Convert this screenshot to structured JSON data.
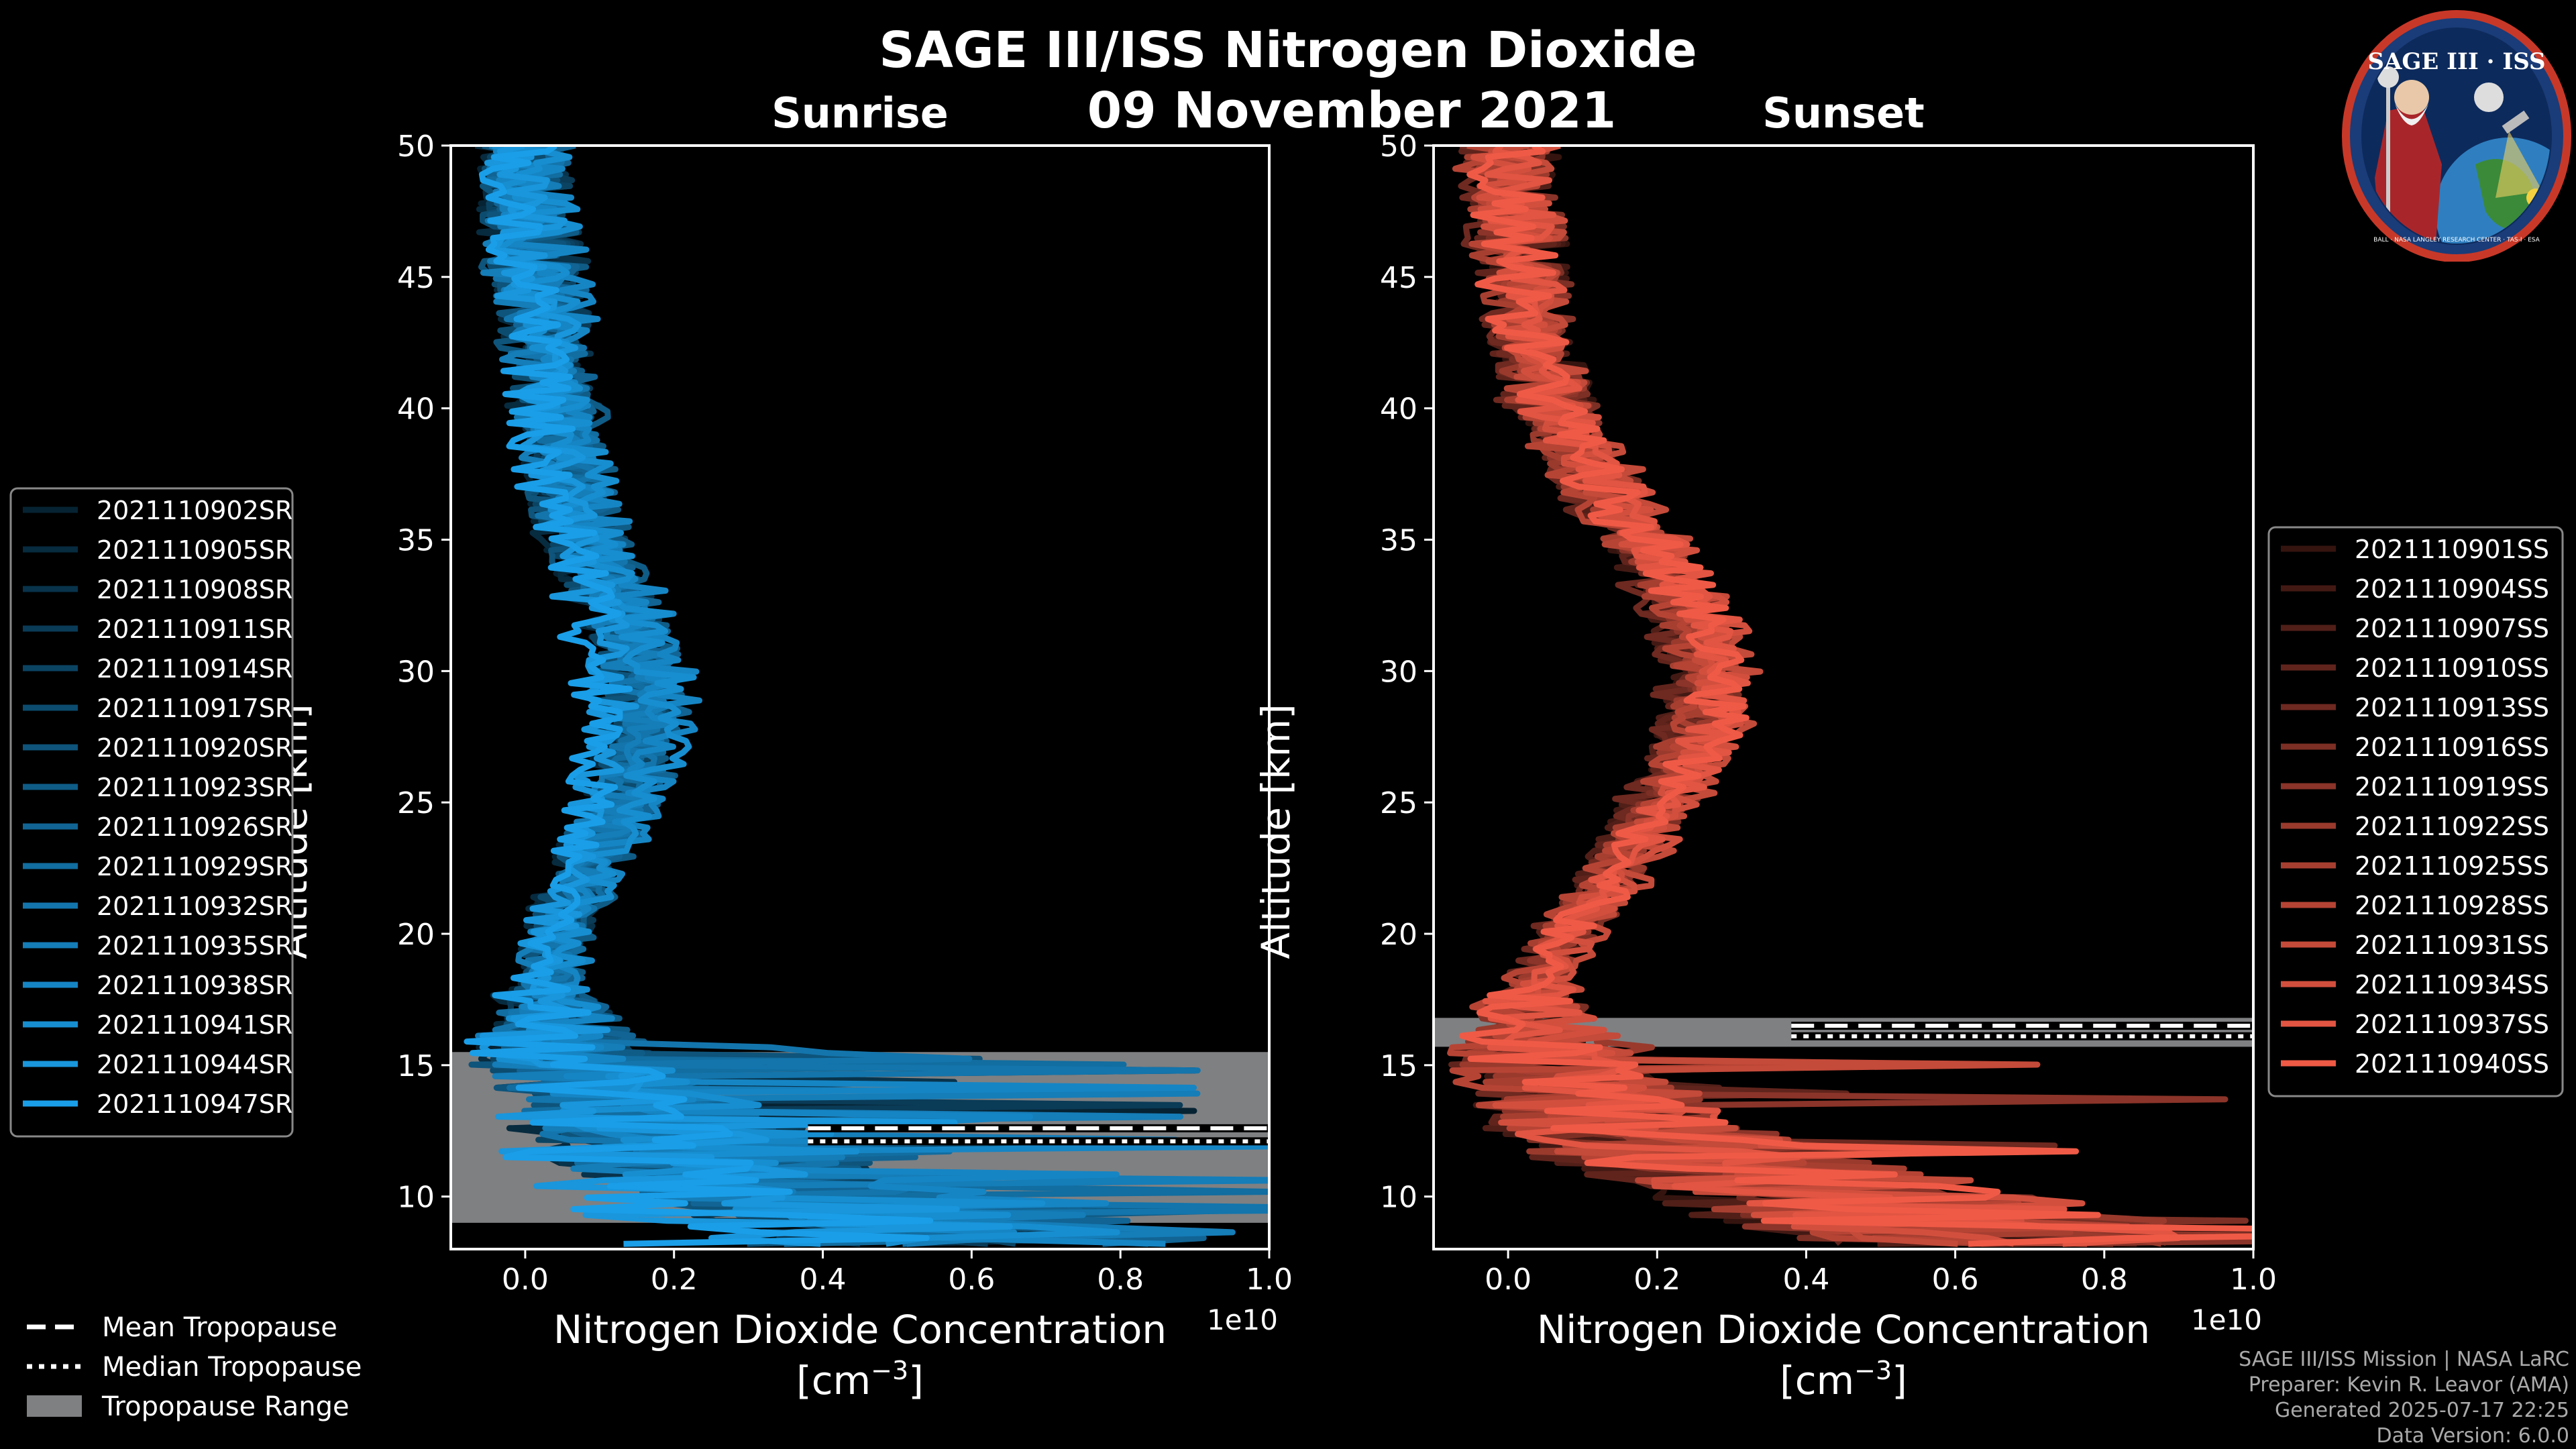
{
  "title": "SAGE III/ISS Nitrogen Dioxide",
  "date": "09 November 2021",
  "logo": {
    "text": "SAGE III · ISS",
    "ring_text": "BALL · NASA LANGLEY RESEARCH CENTER · TAS-I · ESA"
  },
  "credits": [
    "SAGE III/ISS Mission | NASA LaRC",
    "Preparer: Kevin R. Leavor (AMA)",
    "Generated 2025-07-17 22:25",
    "Data Version: 6.0.0"
  ],
  "colors": {
    "background": "#000000",
    "sunrise": "#1a9ee8",
    "sunset": "#ef5a46",
    "tropo_range": "#7f8082",
    "axis": "#ffffff"
  },
  "bottom_legend": [
    {
      "label": "Mean Tropopause",
      "style": "dashed"
    },
    {
      "label": "Median Tropopause",
      "style": "dotted"
    },
    {
      "label": "Tropopause Range",
      "style": "patch"
    }
  ],
  "chart_data": [
    {
      "type": "line",
      "name": "sunrise",
      "subtitle": "Sunrise",
      "xlabel": "Nitrogen Dioxide Concentration",
      "xunit": "[cm",
      "xunit_exp": "−3",
      "xunit_close": "]",
      "ylabel": "Altitude [km]",
      "xlim": [
        -0.1,
        1.0
      ],
      "ylim": [
        8,
        50
      ],
      "x_scale_label": "1e10",
      "xticks": [
        0.0,
        0.2,
        0.4,
        0.6,
        0.8,
        1.0
      ],
      "xtick_labels": [
        "0.0",
        "0.2",
        "0.4",
        "0.6",
        "0.8",
        "1.0"
      ],
      "yticks": [
        10,
        15,
        20,
        25,
        30,
        35,
        40,
        45,
        50
      ],
      "ytick_labels": [
        "10",
        "15",
        "20",
        "25",
        "30",
        "35",
        "40",
        "45",
        "50"
      ],
      "tropopause": {
        "range": [
          9.0,
          15.5
        ],
        "mean": 12.6,
        "median": 12.1
      },
      "profile": {
        "alt": [
          8.5,
          9,
          10,
          11,
          12,
          13,
          14,
          15,
          16,
          17,
          18,
          20,
          22,
          24,
          26,
          28,
          30,
          32,
          34,
          36,
          38,
          40,
          42,
          44,
          46,
          48,
          50
        ],
        "no2": [
          0.55,
          0.5,
          0.35,
          0.25,
          0.2,
          0.15,
          0.1,
          0.06,
          0.04,
          0.03,
          0.03,
          0.04,
          0.07,
          0.1,
          0.13,
          0.15,
          0.14,
          0.12,
          0.09,
          0.06,
          0.05,
          0.04,
          0.03,
          0.02,
          0.01,
          0.005,
          0.0
        ]
      },
      "series": [
        "2021110902SR",
        "2021110905SR",
        "2021110908SR",
        "2021110911SR",
        "2021110914SR",
        "2021110917SR",
        "2021110920SR",
        "2021110923SR",
        "2021110926SR",
        "2021110929SR",
        "2021110932SR",
        "2021110935SR",
        "2021110938SR",
        "2021110941SR",
        "2021110944SR",
        "2021110947SR"
      ]
    },
    {
      "type": "line",
      "name": "sunset",
      "subtitle": "Sunset",
      "xlabel": "Nitrogen Dioxide Concentration",
      "xunit": "[cm",
      "xunit_exp": "−3",
      "xunit_close": "]",
      "ylabel": "Altitude [km]",
      "xlim": [
        -0.1,
        1.0
      ],
      "ylim": [
        8,
        50
      ],
      "x_scale_label": "1e10",
      "xticks": [
        0.0,
        0.2,
        0.4,
        0.6,
        0.8,
        1.0
      ],
      "xtick_labels": [
        "0.0",
        "0.2",
        "0.4",
        "0.6",
        "0.8",
        "1.0"
      ],
      "yticks": [
        10,
        15,
        20,
        25,
        30,
        35,
        40,
        45,
        50
      ],
      "ytick_labels": [
        "10",
        "15",
        "20",
        "25",
        "30",
        "35",
        "40",
        "45",
        "50"
      ],
      "tropopause": {
        "range": [
          15.7,
          16.8
        ],
        "mean": 16.5,
        "median": 16.1
      },
      "profile": {
        "alt": [
          8.5,
          9,
          10,
          11,
          12,
          13,
          14,
          15,
          16,
          17,
          18,
          20,
          22,
          24,
          26,
          28,
          30,
          32,
          34,
          36,
          38,
          40,
          42,
          44,
          46,
          48,
          50
        ],
        "no2": [
          0.6,
          0.5,
          0.4,
          0.28,
          0.18,
          0.12,
          0.08,
          0.05,
          0.03,
          0.02,
          0.03,
          0.07,
          0.12,
          0.16,
          0.2,
          0.23,
          0.24,
          0.22,
          0.18,
          0.13,
          0.09,
          0.05,
          0.03,
          0.02,
          0.01,
          0.005,
          0.0
        ]
      },
      "series": [
        "2021110901SS",
        "2021110904SS",
        "2021110907SS",
        "2021110910SS",
        "2021110913SS",
        "2021110916SS",
        "2021110919SS",
        "2021110922SS",
        "2021110925SS",
        "2021110928SS",
        "2021110931SS",
        "2021110934SS",
        "2021110937SS",
        "2021110940SS"
      ]
    }
  ]
}
